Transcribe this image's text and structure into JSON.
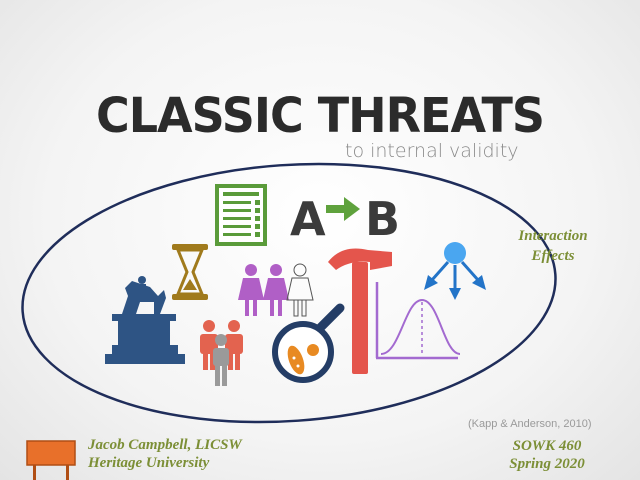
{
  "slide": {
    "title": "CLASSIC THREATS",
    "subtitle": "to internal validity",
    "interaction": [
      "Interaction",
      "Effects"
    ],
    "citation": "(Kapp & Anderson, 2010)",
    "author": {
      "name": "Jacob Campbell, LICSW",
      "institution": "Heritage University"
    },
    "course": {
      "code": "SOWK 460",
      "term": "Spring 2020"
    },
    "ab": {
      "a": "A",
      "b": "B"
    }
  },
  "colors": {
    "ellipse": "#1f2d5a",
    "statue": "#2e5484",
    "hourglass": "#a07a1c",
    "checklist": "#5a9b3a",
    "arrow": "#5fa23d",
    "women": "#b05fc6",
    "group": "#e3634f",
    "hammer": "#e4554c",
    "magnifier": "#243d66",
    "bacteria": "#e88a22",
    "curve": "#a36ad0",
    "tree": "#2374c8",
    "tree_top": "#4aa6f0",
    "sign": "#e8702a",
    "accent_text": "#7c8f36"
  },
  "icons": [
    "statue-icon",
    "hourglass-icon",
    "checklist-icon",
    "ab-arrow-icon",
    "women-icon",
    "group-icon",
    "hammer-icon",
    "magnifier-icon",
    "bell-curve-icon",
    "tree-arrows-icon",
    "sign-icon"
  ]
}
